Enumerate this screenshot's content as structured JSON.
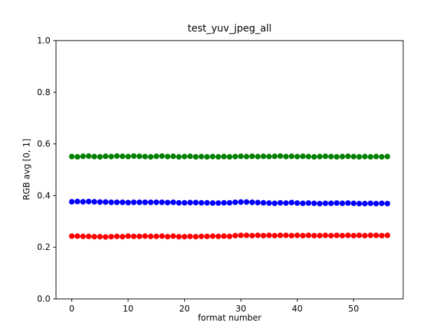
{
  "chart_data": {
    "type": "scatter",
    "title": "test_yuv_jpeg_all",
    "xlabel": "format number",
    "ylabel": "RGB avg [0, 1]",
    "xlim": [
      -2.8,
      58.8
    ],
    "ylim": [
      0.0,
      1.0
    ],
    "grid": false,
    "legend": "none",
    "xticks": [
      0,
      10,
      20,
      30,
      40,
      50
    ],
    "xtick_labels": [
      "0",
      "10",
      "20",
      "30",
      "40",
      "50"
    ],
    "yticks": [
      0.0,
      0.2,
      0.4,
      0.6,
      0.8,
      1.0
    ],
    "ytick_labels": [
      "0.0",
      "0.2",
      "0.4",
      "0.6",
      "0.8",
      "1.0"
    ],
    "x": [
      0,
      1,
      2,
      3,
      4,
      5,
      6,
      7,
      8,
      9,
      10,
      11,
      12,
      13,
      14,
      15,
      16,
      17,
      18,
      19,
      20,
      21,
      22,
      23,
      24,
      25,
      26,
      27,
      28,
      29,
      30,
      31,
      32,
      33,
      34,
      35,
      36,
      37,
      38,
      39,
      40,
      41,
      42,
      43,
      44,
      45,
      46,
      47,
      48,
      49,
      50,
      51,
      52,
      53,
      54,
      55,
      56
    ],
    "series": [
      {
        "name": "green",
        "color": "#008000",
        "values": [
          0.551,
          0.55,
          0.552,
          0.553,
          0.551,
          0.55,
          0.552,
          0.551,
          0.553,
          0.552,
          0.551,
          0.553,
          0.552,
          0.551,
          0.55,
          0.552,
          0.553,
          0.551,
          0.552,
          0.55,
          0.551,
          0.552,
          0.55,
          0.551,
          0.55,
          0.551,
          0.55,
          0.551,
          0.55,
          0.551,
          0.552,
          0.551,
          0.552,
          0.551,
          0.552,
          0.551,
          0.552,
          0.553,
          0.551,
          0.552,
          0.551,
          0.552,
          0.551,
          0.55,
          0.551,
          0.552,
          0.551,
          0.55,
          0.551,
          0.552,
          0.551,
          0.55,
          0.551,
          0.55,
          0.551,
          0.55,
          0.551
        ]
      },
      {
        "name": "blue",
        "color": "#0000ff",
        "values": [
          0.376,
          0.377,
          0.376,
          0.377,
          0.376,
          0.375,
          0.375,
          0.374,
          0.374,
          0.374,
          0.373,
          0.374,
          0.374,
          0.374,
          0.374,
          0.374,
          0.374,
          0.373,
          0.374,
          0.372,
          0.372,
          0.373,
          0.373,
          0.372,
          0.372,
          0.371,
          0.371,
          0.372,
          0.372,
          0.374,
          0.375,
          0.375,
          0.374,
          0.373,
          0.372,
          0.371,
          0.37,
          0.372,
          0.371,
          0.373,
          0.371,
          0.37,
          0.371,
          0.37,
          0.369,
          0.37,
          0.37,
          0.371,
          0.37,
          0.371,
          0.37,
          0.369,
          0.369,
          0.37,
          0.369,
          0.37,
          0.369
        ]
      },
      {
        "name": "red",
        "color": "#ff0000",
        "values": [
          0.243,
          0.243,
          0.242,
          0.242,
          0.241,
          0.241,
          0.24,
          0.241,
          0.242,
          0.241,
          0.243,
          0.242,
          0.242,
          0.243,
          0.242,
          0.242,
          0.243,
          0.241,
          0.243,
          0.241,
          0.241,
          0.242,
          0.241,
          0.242,
          0.242,
          0.243,
          0.242,
          0.243,
          0.242,
          0.245,
          0.246,
          0.246,
          0.245,
          0.246,
          0.245,
          0.246,
          0.245,
          0.246,
          0.246,
          0.245,
          0.246,
          0.245,
          0.246,
          0.245,
          0.245,
          0.246,
          0.245,
          0.246,
          0.245,
          0.246,
          0.245,
          0.246,
          0.245,
          0.246,
          0.246,
          0.245,
          0.246
        ]
      }
    ]
  }
}
